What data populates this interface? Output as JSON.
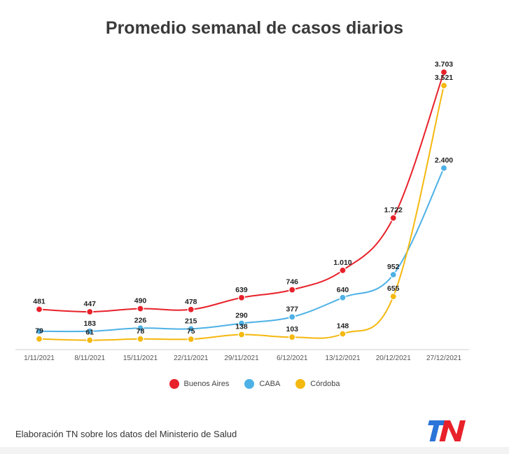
{
  "chart_data": {
    "type": "line",
    "title": "Promedio semanal de casos diarios",
    "xlabel": "",
    "ylabel": "",
    "ylim": [
      0,
      3800
    ],
    "categories": [
      "1/11/2021",
      "8/11/2021",
      "15/11/2021",
      "22/11/2021",
      "29/11/2021",
      "6/12/2021",
      "13/12/2021",
      "20/12/2021",
      "27/12/2021"
    ],
    "series": [
      {
        "name": "Buenos Aires",
        "color": "#e8212a",
        "values": [
          481,
          447,
          490,
          478,
          639,
          746,
          1010,
          1722,
          3703
        ],
        "labels": [
          "481",
          "447",
          "490",
          "478",
          "639",
          "746",
          "1.010",
          "1.722",
          "3.703"
        ]
      },
      {
        "name": "CABA",
        "color": "#4db1e6",
        "values": [
          183,
          183,
          226,
          215,
          290,
          377,
          640,
          952,
          2400
        ],
        "labels": [
          "",
          "183",
          "226",
          "215",
          "290",
          "377",
          "640",
          "952",
          "2.400"
        ]
      },
      {
        "name": "Córdoba",
        "color": "#f5b80f",
        "values": [
          79,
          61,
          78,
          75,
          138,
          103,
          148,
          655,
          3521
        ],
        "labels": [
          "79",
          "61",
          "78",
          "75",
          "138",
          "103",
          "148",
          "655",
          "3.521"
        ]
      }
    ],
    "legend_position": "bottom-center",
    "grid": false
  },
  "footer": {
    "source_text": "Elaboración TN sobre los datos del Ministerio de Salud",
    "logo_text": "TN"
  }
}
